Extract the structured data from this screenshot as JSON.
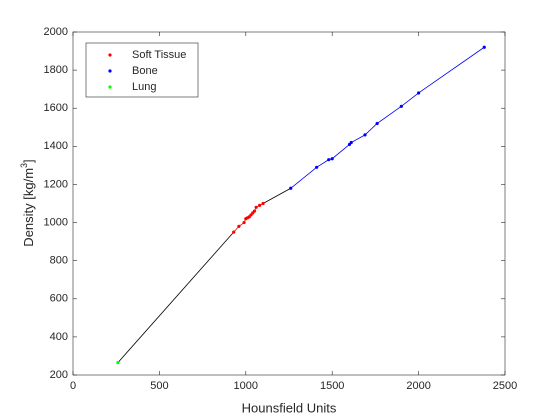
{
  "chart_data": {
    "type": "scatter",
    "xlabel": "Hounsfield Units",
    "ylabel": {
      "text": "Density [kg/m",
      "sup": "3",
      "end": "]"
    },
    "xlim": [
      0,
      2500
    ],
    "xticks": [
      0,
      500,
      1000,
      1500,
      2000,
      2500
    ],
    "ylim": [
      200,
      2000
    ],
    "yticks": [
      200,
      400,
      600,
      800,
      1000,
      1200,
      1400,
      1600,
      1800,
      2000
    ],
    "legend": "top-left",
    "series": [
      {
        "name": "Soft Tissue",
        "color": "#ff0000",
        "x": [
          930,
          960,
          990,
          1000,
          1010,
          1020,
          1030,
          1040,
          1050,
          1060,
          1080,
          1100
        ],
        "values": [
          950,
          980,
          1000,
          1020,
          1025,
          1030,
          1040,
          1050,
          1060,
          1080,
          1090,
          1100
        ]
      },
      {
        "name": "Bone",
        "color": "#0000ff",
        "x": [
          1260,
          1410,
          1480,
          1500,
          1600,
          1610,
          1690,
          1760,
          1900,
          2000,
          2380
        ],
        "values": [
          1180,
          1290,
          1330,
          1335,
          1410,
          1420,
          1460,
          1520,
          1610,
          1680,
          1920
        ]
      },
      {
        "name": "Lung",
        "color": "#00ff00",
        "x": [
          260
        ],
        "values": [
          265
        ]
      }
    ]
  }
}
